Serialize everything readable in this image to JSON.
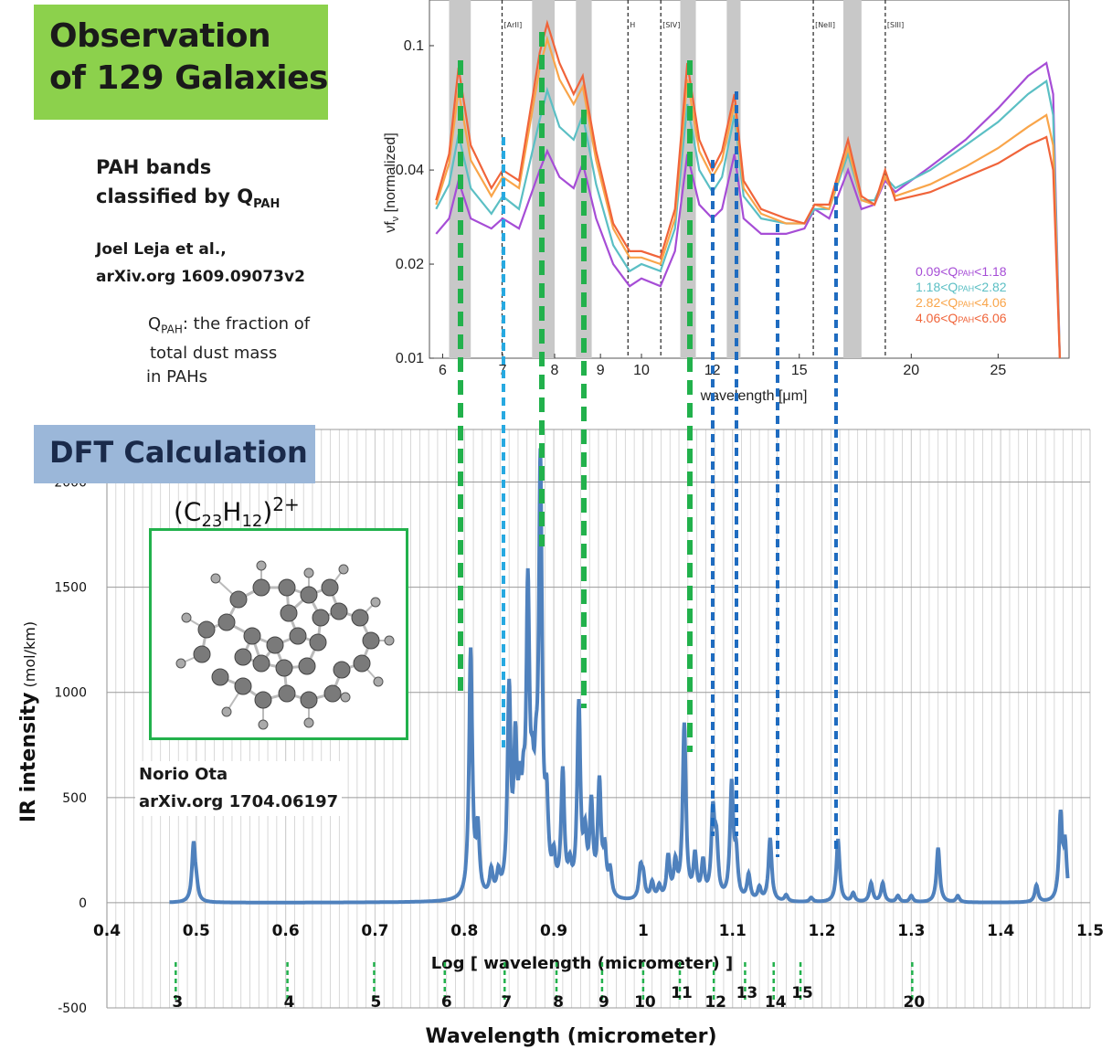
{
  "observation": {
    "title": "Observation\nof 129 Galaxies",
    "pah_bands_line1": "PAH bands",
    "pah_bands_line2": "classified by Q",
    "pah_bands_sub": "PAH",
    "ref_line1": "Joel Leja et al.,",
    "ref_line2": "arXiv.org  1609.09073v2",
    "qpah_def_sym": "Q",
    "qpah_def_sub": "PAH",
    "qpah_def_line1": ": the fraction of",
    "qpah_def_line2": " total dust mass",
    "qpah_def_line3": "in PAHs"
  },
  "dft": {
    "title": "DFT Calculation",
    "molecule_formula": "(C",
    "molecule_sub1": "23",
    "molecule_mid": "H",
    "molecule_sub2": "12",
    "molecule_end": ")",
    "molecule_charge": "2+",
    "ref_line1": "Norio Ota",
    "ref_line2": "arXiv.org  1704.06197"
  },
  "colors": {
    "spectrum": "#4f81bd",
    "green_dash": "#22b14c",
    "lightblue_dash": "#27a9e1",
    "blue_dash": "#1f6cc0",
    "grid": "#bdbdbd",
    "band_shade": "#c8c8c8",
    "series": [
      "#a64dd6",
      "#5bbfc4",
      "#f9a54a",
      "#f0643a"
    ]
  },
  "chart_data": [
    {
      "type": "line",
      "ylabel": "νf",
      "ylabel_sub": "ν",
      "ylabel_suffix": " [normalized]",
      "xlabel": "wavelength [μm]",
      "x_scale": "log",
      "y_scale": "log",
      "xlim": [
        5.8,
        30
      ],
      "ylim": [
        0.01,
        0.14
      ],
      "x_ticks": [
        6,
        7,
        8,
        9,
        10,
        12,
        15,
        20,
        25
      ],
      "y_ticks": [
        0.01,
        0.02,
        0.04,
        0.1
      ],
      "y_tick_labels": [
        "0.01",
        "0.02",
        "0.04",
        "0.1"
      ],
      "line_labels": [
        {
          "name": "[ArII]",
          "x": 6.99
        },
        {
          "name": "H",
          "x": 9.66
        },
        {
          "name": "[SIV]",
          "x": 10.51
        },
        {
          "name": "[NeII]",
          "x": 15.55
        },
        {
          "name": "[SIII]",
          "x": 18.71
        }
      ],
      "shaded_bands": [
        [
          6.1,
          6.45
        ],
        [
          7.55,
          8.0
        ],
        [
          8.45,
          8.8
        ],
        [
          11.05,
          11.5
        ],
        [
          12.45,
          12.9
        ],
        [
          16.8,
          17.6
        ]
      ],
      "legend_placement": "bottom-right",
      "series": [
        {
          "name": "0.09<Q",
          "qsub": "PAH",
          "name_end": "<1.18",
          "color": "#a64dd6",
          "values": [
            [
              5.9,
              0.025
            ],
            [
              6.1,
              0.028
            ],
            [
              6.25,
              0.037
            ],
            [
              6.45,
              0.028
            ],
            [
              6.8,
              0.026
            ],
            [
              7.0,
              0.028
            ],
            [
              7.3,
              0.026
            ],
            [
              7.7,
              0.04
            ],
            [
              7.85,
              0.046
            ],
            [
              8.1,
              0.038
            ],
            [
              8.4,
              0.035
            ],
            [
              8.6,
              0.042
            ],
            [
              8.9,
              0.028
            ],
            [
              9.3,
              0.02
            ],
            [
              9.7,
              0.017
            ],
            [
              10.0,
              0.018
            ],
            [
              10.5,
              0.017
            ],
            [
              10.9,
              0.022
            ],
            [
              11.25,
              0.045
            ],
            [
              11.6,
              0.031
            ],
            [
              12.0,
              0.028
            ],
            [
              12.3,
              0.03
            ],
            [
              12.7,
              0.045
            ],
            [
              13.0,
              0.028
            ],
            [
              13.6,
              0.025
            ],
            [
              14.5,
              0.025
            ],
            [
              15.2,
              0.026
            ],
            [
              15.6,
              0.03
            ],
            [
              16.2,
              0.028
            ],
            [
              17.0,
              0.04
            ],
            [
              17.6,
              0.03
            ],
            [
              18.2,
              0.031
            ],
            [
              18.7,
              0.037
            ],
            [
              19.2,
              0.034
            ],
            [
              21,
              0.041
            ],
            [
              23,
              0.05
            ],
            [
              25,
              0.063
            ],
            [
              27,
              0.08
            ],
            [
              28.3,
              0.088
            ],
            [
              28.8,
              0.07
            ],
            [
              29.3,
              0.01
            ]
          ]
        },
        {
          "name": "1.18<Q",
          "qsub": "PAH",
          "name_end": "<2.82",
          "color": "#5bbfc4",
          "values": [
            [
              5.9,
              0.03
            ],
            [
              6.1,
              0.036
            ],
            [
              6.25,
              0.052
            ],
            [
              6.45,
              0.035
            ],
            [
              6.8,
              0.029
            ],
            [
              7.0,
              0.033
            ],
            [
              7.3,
              0.03
            ],
            [
              7.7,
              0.058
            ],
            [
              7.85,
              0.072
            ],
            [
              8.1,
              0.055
            ],
            [
              8.4,
              0.05
            ],
            [
              8.6,
              0.06
            ],
            [
              8.9,
              0.036
            ],
            [
              9.3,
              0.023
            ],
            [
              9.7,
              0.019
            ],
            [
              10.0,
              0.02
            ],
            [
              10.5,
              0.019
            ],
            [
              10.9,
              0.026
            ],
            [
              11.25,
              0.065
            ],
            [
              11.6,
              0.04
            ],
            [
              12.0,
              0.034
            ],
            [
              12.3,
              0.038
            ],
            [
              12.7,
              0.06
            ],
            [
              13.0,
              0.033
            ],
            [
              13.6,
              0.028
            ],
            [
              14.5,
              0.027
            ],
            [
              15.2,
              0.027
            ],
            [
              15.6,
              0.03
            ],
            [
              16.2,
              0.03
            ],
            [
              17.0,
              0.045
            ],
            [
              17.6,
              0.032
            ],
            [
              18.2,
              0.032
            ],
            [
              18.7,
              0.038
            ],
            [
              19.2,
              0.035
            ],
            [
              21,
              0.04
            ],
            [
              23,
              0.048
            ],
            [
              25,
              0.057
            ],
            [
              27,
              0.07
            ],
            [
              28.3,
              0.077
            ],
            [
              28.8,
              0.06
            ],
            [
              29.3,
              0.01
            ]
          ]
        },
        {
          "name": "2.82<Q",
          "qsub": "PAH",
          "name_end": "<4.06",
          "color": "#f9a54a",
          "values": [
            [
              5.9,
              0.031
            ],
            [
              6.1,
              0.042
            ],
            [
              6.25,
              0.072
            ],
            [
              6.45,
              0.043
            ],
            [
              6.8,
              0.033
            ],
            [
              7.0,
              0.038
            ],
            [
              7.3,
              0.035
            ],
            [
              7.7,
              0.085
            ],
            [
              7.85,
              0.105
            ],
            [
              8.1,
              0.078
            ],
            [
              8.4,
              0.065
            ],
            [
              8.6,
              0.074
            ],
            [
              8.9,
              0.043
            ],
            [
              9.3,
              0.026
            ],
            [
              9.7,
              0.021
            ],
            [
              10.0,
              0.021
            ],
            [
              10.5,
              0.02
            ],
            [
              10.9,
              0.028
            ],
            [
              11.25,
              0.078
            ],
            [
              11.6,
              0.046
            ],
            [
              12.0,
              0.038
            ],
            [
              12.3,
              0.043
            ],
            [
              12.7,
              0.065
            ],
            [
              13.0,
              0.035
            ],
            [
              13.6,
              0.029
            ],
            [
              14.5,
              0.027
            ],
            [
              15.2,
              0.027
            ],
            [
              15.6,
              0.031
            ],
            [
              16.2,
              0.03
            ],
            [
              17.0,
              0.047
            ],
            [
              17.6,
              0.032
            ],
            [
              18.2,
              0.031
            ],
            [
              18.7,
              0.038
            ],
            [
              19.2,
              0.033
            ],
            [
              21,
              0.036
            ],
            [
              23,
              0.041
            ],
            [
              25,
              0.047
            ],
            [
              27,
              0.055
            ],
            [
              28.3,
              0.06
            ],
            [
              28.8,
              0.048
            ],
            [
              29.3,
              0.01
            ]
          ]
        },
        {
          "name": "4.06<Q",
          "qsub": "PAH",
          "name_end": "<6.06",
          "color": "#f0643a",
          "values": [
            [
              5.9,
              0.032
            ],
            [
              6.1,
              0.045
            ],
            [
              6.25,
              0.085
            ],
            [
              6.45,
              0.048
            ],
            [
              6.8,
              0.035
            ],
            [
              7.0,
              0.04
            ],
            [
              7.3,
              0.037
            ],
            [
              7.7,
              0.095
            ],
            [
              7.85,
              0.118
            ],
            [
              8.1,
              0.088
            ],
            [
              8.4,
              0.07
            ],
            [
              8.6,
              0.08
            ],
            [
              8.9,
              0.046
            ],
            [
              9.3,
              0.027
            ],
            [
              9.7,
              0.022
            ],
            [
              10.0,
              0.022
            ],
            [
              10.5,
              0.021
            ],
            [
              10.9,
              0.03
            ],
            [
              11.25,
              0.088
            ],
            [
              11.6,
              0.05
            ],
            [
              12.0,
              0.04
            ],
            [
              12.3,
              0.046
            ],
            [
              12.7,
              0.07
            ],
            [
              13.0,
              0.037
            ],
            [
              13.6,
              0.03
            ],
            [
              14.5,
              0.028
            ],
            [
              15.2,
              0.027
            ],
            [
              15.6,
              0.031
            ],
            [
              16.2,
              0.031
            ],
            [
              17.0,
              0.05
            ],
            [
              17.6,
              0.033
            ],
            [
              18.2,
              0.031
            ],
            [
              18.7,
              0.04
            ],
            [
              19.2,
              0.032
            ],
            [
              21,
              0.034
            ],
            [
              23,
              0.038
            ],
            [
              25,
              0.042
            ],
            [
              27,
              0.048
            ],
            [
              28.3,
              0.051
            ],
            [
              28.8,
              0.04
            ],
            [
              29.3,
              0.01
            ]
          ]
        }
      ]
    },
    {
      "type": "line",
      "ylabel": "IR intensity",
      "ylabel_unit": " (mol/km)",
      "xlabel": "Log [ wavelength (micrometer) ]",
      "xlabel2": "Wavelength (micrometer)",
      "xlim": [
        0.4,
        1.5
      ],
      "ylim": [
        -500,
        2250
      ],
      "x_ticks": [
        0.4,
        0.5,
        0.6,
        0.7,
        0.8,
        0.9,
        1,
        1.1,
        1.2,
        1.3,
        1.4,
        1.5
      ],
      "x_tick_labels": [
        "0.4",
        "0.5",
        "0.6",
        "0.7",
        "0.8",
        "0.9",
        "1",
        "1.1",
        "1.2",
        "1.3",
        "1.4",
        "1.5"
      ],
      "y_ticks": [
        -500,
        0,
        500,
        1000,
        1500,
        2000
      ],
      "y_tick_labels": [
        "-500",
        "0",
        "500",
        "1000",
        "1500",
        "2000"
      ],
      "wavelength_labels": [
        {
          "label": "3",
          "logx": 0.477
        },
        {
          "label": "4",
          "logx": 0.602
        },
        {
          "label": "5",
          "logx": 0.699
        },
        {
          "label": "6",
          "logx": 0.778
        },
        {
          "label": "7",
          "logx": 0.845
        },
        {
          "label": "8",
          "logx": 0.903
        },
        {
          "label": "9",
          "logx": 0.954
        },
        {
          "label": "10",
          "logx": 1.0
        },
        {
          "label": "11",
          "logx": 1.041
        },
        {
          "label": "12",
          "logx": 1.079
        },
        {
          "label": "13",
          "logx": 1.114
        },
        {
          "label": "14",
          "logx": 1.146
        },
        {
          "label": "15",
          "logx": 1.176
        },
        {
          "label": "20",
          "logx": 1.301
        }
      ],
      "peaks": [
        [
          0.497,
          270
        ],
        [
          0.5,
          60
        ],
        [
          0.807,
          1180
        ],
        [
          0.815,
          310
        ],
        [
          0.83,
          120
        ],
        [
          0.838,
          100
        ],
        [
          0.85,
          950
        ],
        [
          0.857,
          640
        ],
        [
          0.862,
          350
        ],
        [
          0.866,
          300
        ],
        [
          0.871,
          1360
        ],
        [
          0.876,
          340
        ],
        [
          0.88,
          350
        ],
        [
          0.885,
          1990
        ],
        [
          0.892,
          360
        ],
        [
          0.9,
          150
        ],
        [
          0.91,
          580
        ],
        [
          0.918,
          120
        ],
        [
          0.928,
          900
        ],
        [
          0.935,
          250
        ],
        [
          0.942,
          420
        ],
        [
          0.951,
          530
        ],
        [
          0.957,
          200
        ],
        [
          0.963,
          120
        ],
        [
          0.997,
          140
        ],
        [
          1.0,
          100
        ],
        [
          1.01,
          80
        ],
        [
          1.018,
          60
        ],
        [
          1.028,
          200
        ],
        [
          1.036,
          160
        ],
        [
          1.046,
          830
        ],
        [
          1.058,
          200
        ],
        [
          1.067,
          170
        ],
        [
          1.078,
          400
        ],
        [
          1.082,
          250
        ],
        [
          1.099,
          540
        ],
        [
          1.104,
          200
        ],
        [
          1.118,
          120
        ],
        [
          1.13,
          60
        ],
        [
          1.142,
          300
        ],
        [
          1.16,
          30
        ],
        [
          1.188,
          20
        ],
        [
          1.218,
          300
        ],
        [
          1.235,
          40
        ],
        [
          1.255,
          90
        ],
        [
          1.268,
          90
        ],
        [
          1.285,
          30
        ],
        [
          1.3,
          30
        ],
        [
          1.33,
          260
        ],
        [
          1.352,
          30
        ],
        [
          1.44,
          80
        ],
        [
          1.467,
          400
        ],
        [
          1.472,
          250
        ]
      ],
      "series": [
        {
          "name": "",
          "color": "#4f81bd"
        }
      ]
    }
  ]
}
